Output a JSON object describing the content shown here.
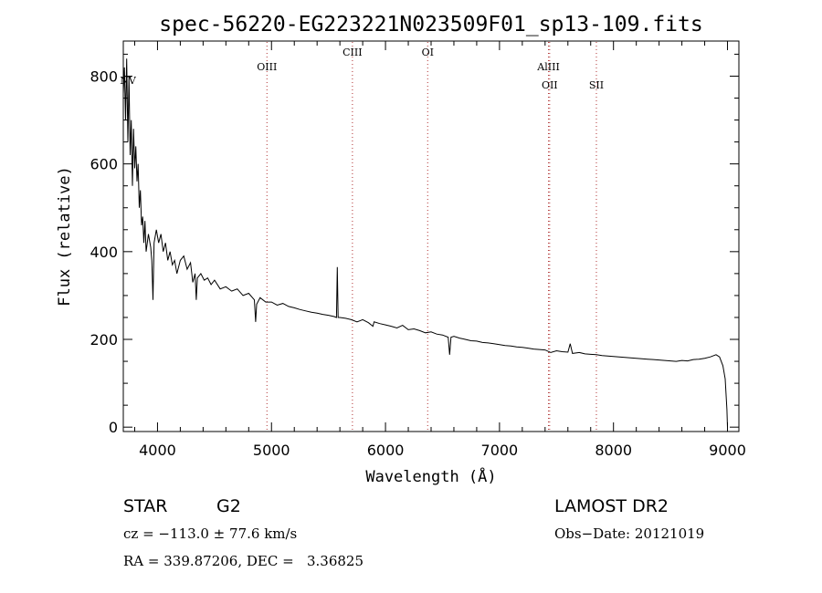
{
  "chart_data": {
    "type": "line",
    "title": "spec-56220-EG223221N023509F01_sp13-109.fits",
    "xlabel": "Wavelength (Å)",
    "ylabel": "Flux (relative)",
    "xlim": [
      3700,
      9100
    ],
    "ylim": [
      -10,
      880
    ],
    "x_ticks": [
      4000,
      5000,
      6000,
      7000,
      8000,
      9000
    ],
    "y_ticks": [
      0,
      200,
      400,
      600,
      800
    ],
    "grid": false,
    "series": [
      {
        "line_color": "#000000",
        "points": [
          [
            3700,
            760
          ],
          [
            3710,
            820
          ],
          [
            3720,
            700
          ],
          [
            3730,
            840
          ],
          [
            3740,
            650
          ],
          [
            3750,
            800
          ],
          [
            3760,
            620
          ],
          [
            3770,
            700
          ],
          [
            3780,
            550
          ],
          [
            3790,
            680
          ],
          [
            3800,
            590
          ],
          [
            3810,
            640
          ],
          [
            3820,
            560
          ],
          [
            3830,
            600
          ],
          [
            3840,
            500
          ],
          [
            3850,
            540
          ],
          [
            3860,
            460
          ],
          [
            3870,
            480
          ],
          [
            3880,
            420
          ],
          [
            3890,
            470
          ],
          [
            3900,
            400
          ],
          [
            3920,
            440
          ],
          [
            3940,
            410
          ],
          [
            3950,
            380
          ],
          [
            3960,
            290
          ],
          [
            3970,
            420
          ],
          [
            3990,
            450
          ],
          [
            4010,
            420
          ],
          [
            4030,
            440
          ],
          [
            4050,
            400
          ],
          [
            4070,
            420
          ],
          [
            4090,
            380
          ],
          [
            4110,
            400
          ],
          [
            4130,
            370
          ],
          [
            4150,
            380
          ],
          [
            4170,
            350
          ],
          [
            4200,
            380
          ],
          [
            4230,
            390
          ],
          [
            4260,
            360
          ],
          [
            4290,
            375
          ],
          [
            4310,
            330
          ],
          [
            4330,
            350
          ],
          [
            4340,
            290
          ],
          [
            4350,
            340
          ],
          [
            4380,
            350
          ],
          [
            4410,
            335
          ],
          [
            4440,
            340
          ],
          [
            4470,
            325
          ],
          [
            4500,
            335
          ],
          [
            4550,
            315
          ],
          [
            4600,
            320
          ],
          [
            4650,
            310
          ],
          [
            4700,
            315
          ],
          [
            4750,
            300
          ],
          [
            4800,
            305
          ],
          [
            4850,
            290
          ],
          [
            4861,
            240
          ],
          [
            4870,
            280
          ],
          [
            4900,
            295
          ],
          [
            4950,
            285
          ],
          [
            5000,
            285
          ],
          [
            5050,
            278
          ],
          [
            5100,
            282
          ],
          [
            5150,
            275
          ],
          [
            5200,
            272
          ],
          [
            5250,
            268
          ],
          [
            5300,
            265
          ],
          [
            5350,
            262
          ],
          [
            5400,
            260
          ],
          [
            5450,
            257
          ],
          [
            5500,
            255
          ],
          [
            5550,
            252
          ],
          [
            5570,
            250
          ],
          [
            5577,
            365
          ],
          [
            5584,
            250
          ],
          [
            5600,
            250
          ],
          [
            5650,
            248
          ],
          [
            5700,
            245
          ],
          [
            5750,
            240
          ],
          [
            5800,
            245
          ],
          [
            5850,
            238
          ],
          [
            5890,
            230
          ],
          [
            5900,
            240
          ],
          [
            5950,
            236
          ],
          [
            6000,
            233
          ],
          [
            6050,
            230
          ],
          [
            6100,
            226
          ],
          [
            6150,
            232
          ],
          [
            6200,
            222
          ],
          [
            6250,
            224
          ],
          [
            6300,
            220
          ],
          [
            6350,
            215
          ],
          [
            6400,
            217
          ],
          [
            6450,
            212
          ],
          [
            6500,
            210
          ],
          [
            6550,
            205
          ],
          [
            6563,
            165
          ],
          [
            6575,
            205
          ],
          [
            6600,
            207
          ],
          [
            6650,
            203
          ],
          [
            6700,
            200
          ],
          [
            6750,
            197
          ],
          [
            6800,
            196
          ],
          [
            6850,
            193
          ],
          [
            6900,
            192
          ],
          [
            6950,
            190
          ],
          [
            7000,
            188
          ],
          [
            7050,
            186
          ],
          [
            7100,
            185
          ],
          [
            7150,
            183
          ],
          [
            7200,
            182
          ],
          [
            7250,
            180
          ],
          [
            7300,
            178
          ],
          [
            7350,
            177
          ],
          [
            7400,
            176
          ],
          [
            7450,
            170
          ],
          [
            7500,
            174
          ],
          [
            7550,
            172
          ],
          [
            7600,
            171
          ],
          [
            7620,
            190
          ],
          [
            7640,
            168
          ],
          [
            7700,
            170
          ],
          [
            7750,
            167
          ],
          [
            7800,
            166
          ],
          [
            7850,
            165
          ],
          [
            7900,
            163
          ],
          [
            7950,
            162
          ],
          [
            8000,
            161
          ],
          [
            8050,
            160
          ],
          [
            8100,
            159
          ],
          [
            8150,
            158
          ],
          [
            8200,
            157
          ],
          [
            8250,
            156
          ],
          [
            8300,
            155
          ],
          [
            8350,
            154
          ],
          [
            8400,
            153
          ],
          [
            8450,
            152
          ],
          [
            8500,
            151
          ],
          [
            8550,
            150
          ],
          [
            8600,
            152
          ],
          [
            8650,
            151
          ],
          [
            8700,
            154
          ],
          [
            8750,
            155
          ],
          [
            8800,
            157
          ],
          [
            8850,
            160
          ],
          [
            8900,
            165
          ],
          [
            8930,
            160
          ],
          [
            8960,
            140
          ],
          [
            8980,
            110
          ],
          [
            8995,
            40
          ],
          [
            9000,
            0
          ]
        ]
      }
    ],
    "annotations": [
      {
        "label": "NV",
        "x": 3740
      },
      {
        "label": "OIII",
        "x": 4960,
        "line": true
      },
      {
        "label": "CIII",
        "x": 5710,
        "line": true
      },
      {
        "label": "OI",
        "x": 6370,
        "line": true
      },
      {
        "label": "AlIII",
        "x": 7430,
        "line": true
      },
      {
        "label": "OII",
        "x": 7440,
        "line": true
      },
      {
        "label": "SII",
        "x": 7850,
        "line": true
      }
    ]
  },
  "info": {
    "object_class": "STAR",
    "subclass": "G2",
    "release": "LAMOST DR2",
    "redshift": "cz = −113.0 ± 77.6 km/s",
    "obs_date": "Obs−Date: 20121019",
    "coords": "RA = 339.87206, DEC =   3.36825"
  }
}
